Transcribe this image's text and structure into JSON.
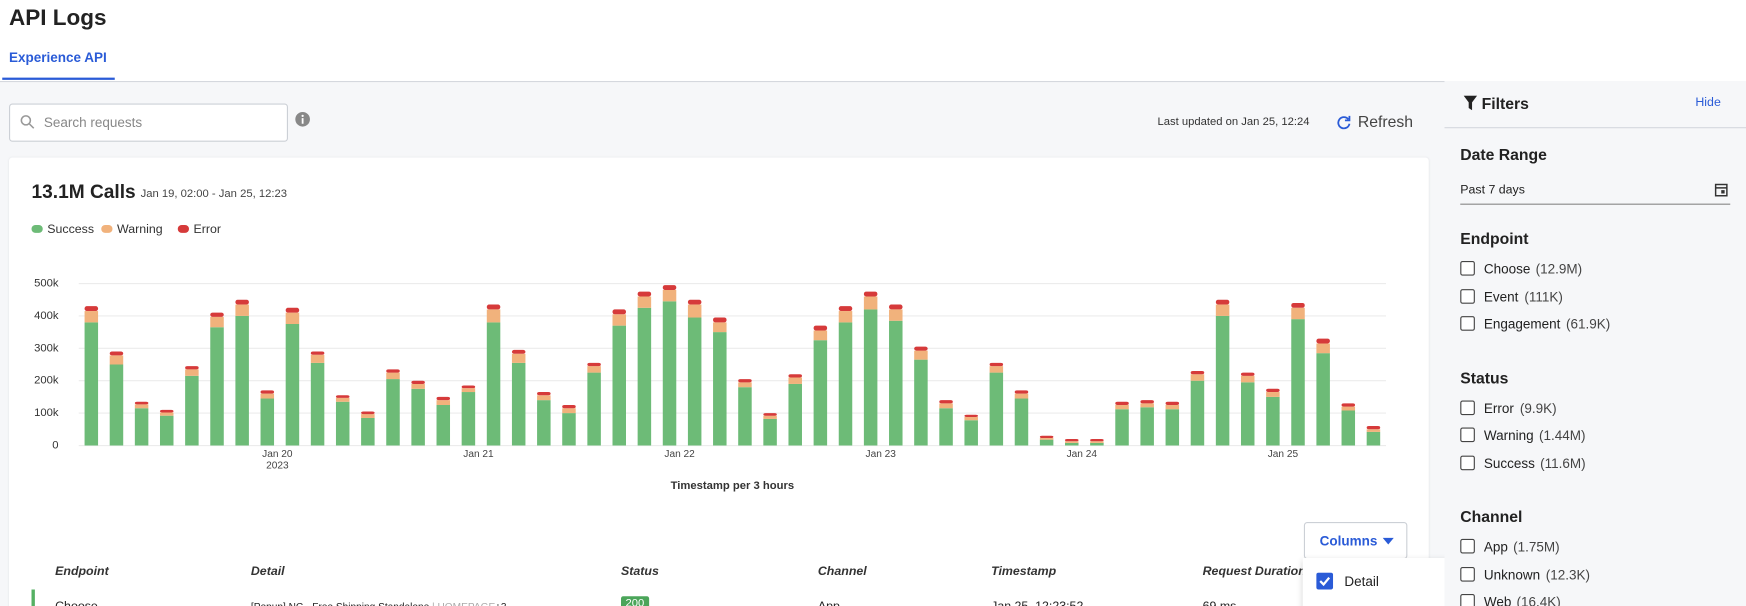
{
  "header": {
    "title": "API Logs",
    "tab": "Experience API"
  },
  "toolbar": {
    "search_placeholder": "Search requests",
    "last_updated": "Last updated on Jan 25, 12:24",
    "refresh": "Refresh"
  },
  "summary": {
    "total": "13.1M Calls",
    "range": "Jan 19, 02:00 - Jan 25, 12:23"
  },
  "chart_data": {
    "type": "stacked_bar",
    "x_label": "Timestamp per 3 hours",
    "x_year_label": "2023",
    "categories": [
      null,
      null,
      null,
      null,
      null,
      null,
      null,
      "Jan 20",
      null,
      null,
      null,
      null,
      null,
      null,
      null,
      "Jan 21",
      null,
      null,
      null,
      null,
      null,
      null,
      null,
      "Jan 22",
      null,
      null,
      null,
      null,
      null,
      null,
      null,
      "Jan 23",
      null,
      null,
      null,
      null,
      null,
      null,
      null,
      "Jan 24",
      null,
      null,
      null,
      null,
      null,
      null,
      null,
      "Jan 25",
      null,
      null,
      null,
      null
    ],
    "series": [
      {
        "name": "Success",
        "color": "#6dbb77",
        "values": [
          380000,
          250000,
          115000,
          92000,
          215000,
          365000,
          400000,
          145000,
          375000,
          255000,
          135000,
          85000,
          205000,
          175000,
          125000,
          165000,
          380000,
          255000,
          140000,
          100000,
          225000,
          370000,
          425000,
          445000,
          395000,
          350000,
          180000,
          82000,
          190000,
          325000,
          380000,
          420000,
          385000,
          265000,
          115000,
          78000,
          225000,
          145000,
          18000,
          8000,
          8000,
          112000,
          118000,
          112000,
          200000,
          400000,
          195000,
          150000,
          390000,
          285000,
          108000,
          42000
        ]
      },
      {
        "name": "Warning",
        "color": "#f1b27c",
        "values": [
          35000,
          28000,
          12000,
          10000,
          20000,
          32000,
          35000,
          15000,
          35000,
          25000,
          12000,
          12000,
          20000,
          15000,
          15000,
          12000,
          40000,
          28000,
          15000,
          15000,
          20000,
          35000,
          35000,
          35000,
          40000,
          30000,
          15000,
          10000,
          20000,
          30000,
          35000,
          40000,
          35000,
          28000,
          15000,
          10000,
          20000,
          15000,
          5000,
          5000,
          5000,
          13000,
          12000,
          13000,
          20000,
          35000,
          20000,
          15000,
          35000,
          30000,
          12000,
          8000
        ]
      },
      {
        "name": "Error",
        "color": "#d63a3a",
        "values": [
          15000,
          12000,
          8000,
          8000,
          10000,
          13000,
          15000,
          10000,
          15000,
          10000,
          8000,
          8000,
          10000,
          10000,
          10000,
          8000,
          15000,
          12000,
          10000,
          10000,
          10000,
          15000,
          15000,
          15000,
          15000,
          15000,
          10000,
          8000,
          10000,
          15000,
          15000,
          15000,
          15000,
          12000,
          10000,
          7000,
          10000,
          10000,
          7000,
          7000,
          7000,
          10000,
          10000,
          10000,
          10000,
          15000,
          10000,
          10000,
          15000,
          15000,
          10000,
          10000
        ]
      }
    ],
    "ylim": [
      0,
      500000
    ],
    "yticks": [
      0,
      {
        "value": 100000,
        "label": "100k"
      },
      {
        "value": 200000,
        "label": "200k"
      },
      {
        "value": 300000,
        "label": "300k"
      },
      {
        "value": 400000,
        "label": "400k"
      },
      {
        "value": 500000,
        "label": "500k"
      }
    ],
    "grid": true
  },
  "table": {
    "columns_button": "Columns",
    "columns_menu": [
      "Detail"
    ],
    "headers": [
      "Endpoint",
      "Detail",
      "Status",
      "Channel",
      "Timestamp",
      "Request Duration"
    ],
    "rows": [
      {
        "endpoint": "Choose",
        "detail": "[Popup] NC - Free Shipping Standalone",
        "detail_tag": "| HOMEPAGE",
        "detail_more": "+3",
        "status": "200",
        "channel": "App",
        "timestamp": "Jan 25, 12:23:52",
        "duration": "69 ms"
      }
    ]
  },
  "filters": {
    "title": "Filters",
    "hide": "Hide",
    "date_range": {
      "title": "Date Range",
      "value": "Past 7 days"
    },
    "groups": [
      {
        "title": "Endpoint",
        "options": [
          {
            "label": "Choose",
            "count": "(12.9M)"
          },
          {
            "label": "Event",
            "count": "(111K)"
          },
          {
            "label": "Engagement",
            "count": "(61.9K)"
          }
        ]
      },
      {
        "title": "Status",
        "options": [
          {
            "label": "Error",
            "count": "(9.9K)"
          },
          {
            "label": "Warning",
            "count": "(1.44M)"
          },
          {
            "label": "Success",
            "count": "(11.6M)"
          }
        ]
      },
      {
        "title": "Channel",
        "options": [
          {
            "label": "App",
            "count": "(1.75M)"
          },
          {
            "label": "Unknown",
            "count": "(12.3K)"
          },
          {
            "label": "Web",
            "count": "(16.4K)"
          }
        ]
      }
    ]
  }
}
